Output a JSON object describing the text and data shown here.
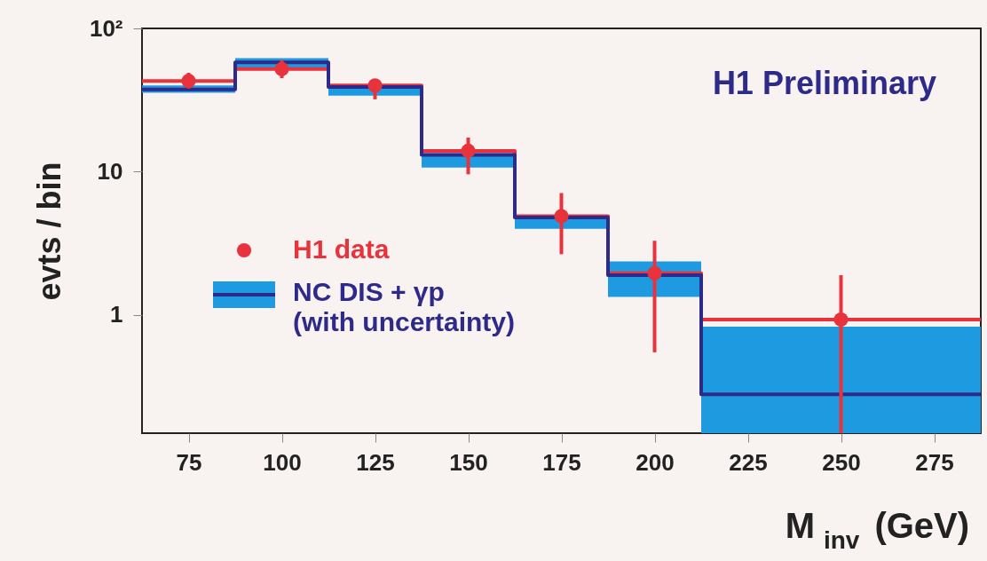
{
  "chart_data": {
    "type": "step",
    "xlabel": "M$_{inv}$ (GeV)",
    "ylabel": "evts / bin",
    "annotations": [
      "H1 Preliminary"
    ],
    "xlim": [
      62.5,
      287.5
    ],
    "xticks": [
      75,
      100,
      125,
      150,
      175,
      200,
      225,
      250,
      275
    ],
    "ylim": [
      0.15,
      100
    ],
    "yticks": [
      1,
      10,
      {
        "value": 100,
        "label": "10²"
      }
    ],
    "log": true,
    "grid": false,
    "legend": "left",
    "series": [
      {
        "color": "#e8323c",
        "x": [
          62.5,
          87.5,
          112.5,
          137.5,
          162.5,
          187.5,
          212.5,
          287.5
        ],
        "values": [
          43,
          52,
          40,
          14,
          4.9,
          1.96,
          0.93,
          0.93
        ]
      },
      {
        "name": "NC DIS + γp\n(with uncertainty)",
        "color": "#2d2a8a",
        "colors": [
          "#1e9be0",
          "#1e9be0",
          "#1e9be0",
          "#1e9be0",
          "#1e9be0",
          "#1e9be0",
          "#1e9be0",
          "#1e9be0"
        ],
        "x": [
          62.5,
          87.5,
          112.5,
          137.5,
          162.5,
          187.5,
          212.5,
          287.5
        ],
        "values": [
          37.5,
          58,
          39,
          13.1,
          4.8,
          1.9,
          0.28,
          0.28
        ],
        "lower": [
          35.6,
          52,
          34,
          10.7,
          4.0,
          1.34,
          0.15,
          0.15
        ],
        "upper": [
          40,
          62,
          40,
          13.5,
          5.0,
          2.37,
          0.83,
          0.83
        ]
      },
      {
        "name": "H1 data",
        "type": "scatter",
        "marker": "circle",
        "color": "#e8323c",
        "x": [
          75,
          100,
          125,
          150,
          175,
          200,
          250
        ],
        "values": [
          43,
          52,
          40,
          14,
          4.9,
          1.96,
          0.93
        ],
        "errors": [
          [
            38,
            49
          ],
          [
            45,
            60
          ],
          [
            32,
            43
          ],
          [
            9.6,
            17.3
          ],
          [
            2.66,
            7.1
          ],
          [
            0.55,
            3.3
          ],
          [
            0.15,
            1.9
          ]
        ]
      }
    ]
  }
}
